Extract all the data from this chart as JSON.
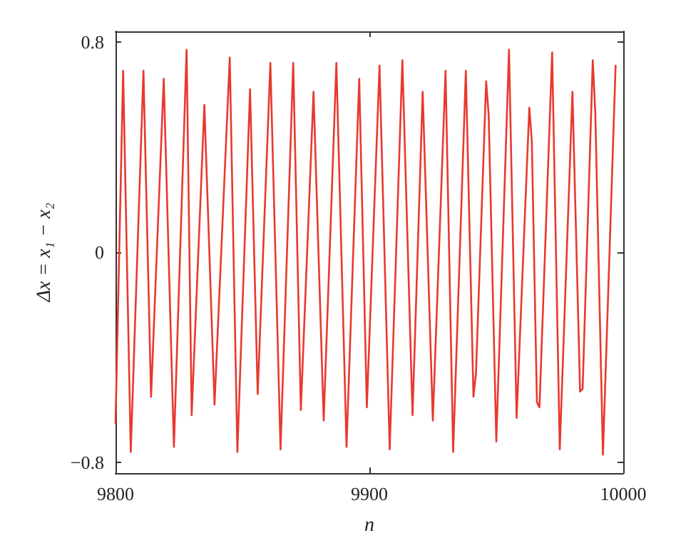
{
  "chart_data": {
    "type": "line",
    "xlabel": "n",
    "ylabel": "Δx = x₁ − x₂",
    "x": [
      9800,
      9803,
      9806,
      9811,
      9814,
      9819,
      9823,
      9828,
      9830,
      9835,
      9839,
      9845,
      9848,
      9853,
      9856,
      9861,
      9865,
      9870,
      9873,
      9878,
      9882,
      9887,
      9891,
      9896,
      9899,
      9904,
      9908,
      9913,
      9917,
      9921,
      9925,
      9930,
      9933,
      9938,
      9941,
      9942,
      9946,
      9947,
      9950,
      9955,
      9958,
      9963,
      9964,
      9966,
      9967,
      9972,
      9975,
      9980,
      9983,
      9984,
      9988,
      9989,
      9992,
      9997
    ],
    "series": [
      {
        "color": "#e8392e",
        "values": [
          -0.65,
          0.69,
          -0.76,
          0.69,
          -0.55,
          0.66,
          -0.74,
          0.77,
          -0.62,
          0.56,
          -0.58,
          0.74,
          -0.76,
          0.62,
          -0.54,
          0.72,
          -0.75,
          0.72,
          -0.6,
          0.61,
          -0.64,
          0.72,
          -0.74,
          0.66,
          -0.59,
          0.71,
          -0.75,
          0.73,
          -0.62,
          0.61,
          -0.64,
          0.69,
          -0.76,
          0.69,
          -0.55,
          -0.46,
          0.65,
          0.52,
          -0.72,
          0.77,
          -0.63,
          0.55,
          0.42,
          -0.57,
          -0.59,
          0.76,
          -0.75,
          0.61,
          -0.53,
          -0.52,
          0.73,
          0.53,
          -0.77,
          0.71
        ]
      }
    ],
    "xlim": [
      9800,
      10000
    ],
    "xticks": [
      9800,
      9900,
      10000
    ],
    "ylim": [
      -0.84,
      0.84
    ],
    "yticks": [
      {
        "value": -0.8,
        "label": "−0.8"
      },
      0,
      0.8
    ],
    "grid": false,
    "marker": "none",
    "line_style": "solid"
  }
}
